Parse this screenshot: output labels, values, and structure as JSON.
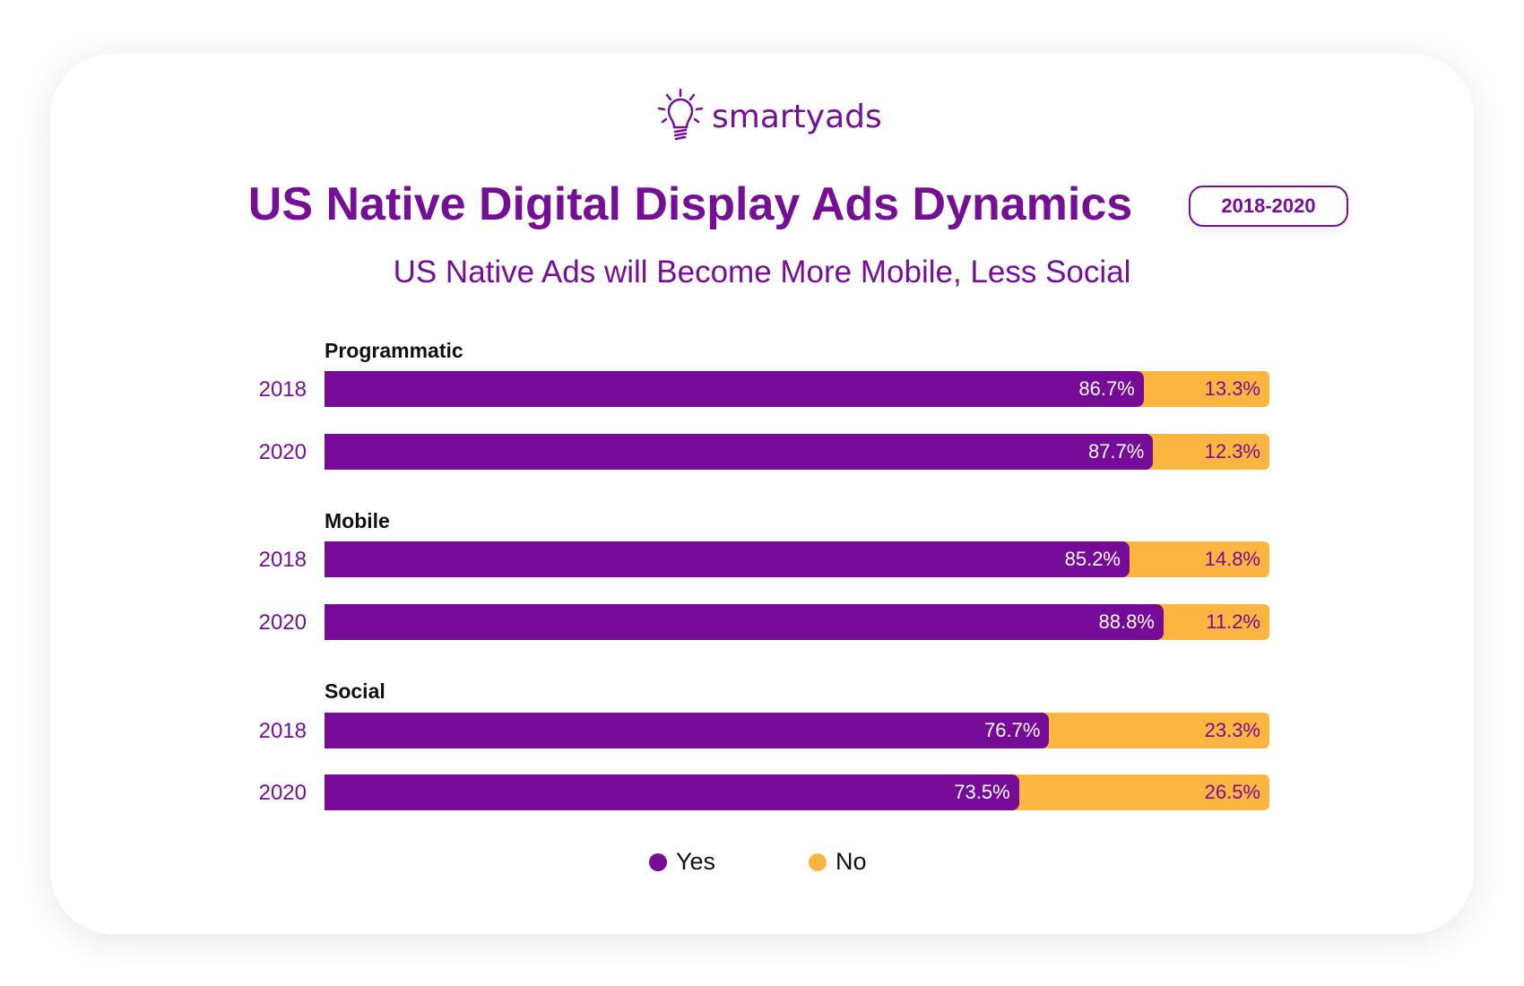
{
  "brand": {
    "logo_text": "smartyads"
  },
  "chart_data": {
    "type": "bar",
    "orientation": "horizontal",
    "stacked": true,
    "title": "US Native Digital Display Ads Dynamics",
    "badge": "2018-2020",
    "subtitle": "US Native Ads will Become More Mobile, Less Social",
    "xlim": [
      0,
      100
    ],
    "legend_position": "bottom",
    "legend": [
      {
        "name": "Yes",
        "color": "#750b96"
      },
      {
        "name": "No",
        "color": "#fbb540"
      }
    ],
    "groups": [
      {
        "name": "Programmatic",
        "rows": [
          {
            "year": "2018",
            "yes": 86.7,
            "no": 13.3
          },
          {
            "year": "2020",
            "yes": 87.7,
            "no": 12.3
          }
        ]
      },
      {
        "name": "Mobile",
        "rows": [
          {
            "year": "2018",
            "yes": 85.2,
            "no": 14.8
          },
          {
            "year": "2020",
            "yes": 88.8,
            "no": 11.2
          }
        ]
      },
      {
        "name": "Social",
        "rows": [
          {
            "year": "2018",
            "yes": 76.7,
            "no": 23.3
          },
          {
            "year": "2020",
            "yes": 73.5,
            "no": 26.5
          }
        ]
      }
    ]
  }
}
